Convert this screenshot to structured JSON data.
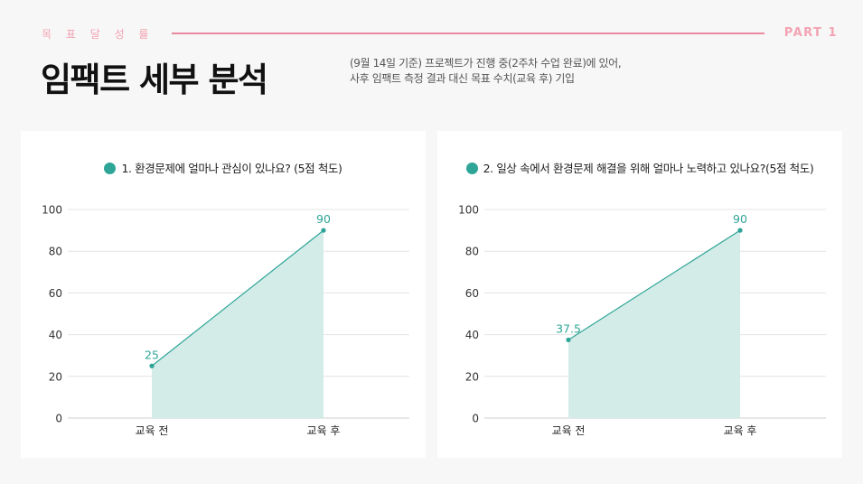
{
  "header": {
    "kicker": "목 표 달 성 률",
    "part": "PART 1",
    "title": "임팩트 세부 분석",
    "subtitle_line1": "(9월 14일 기준) 프로젝트가 진행 중(2주차 수업 완료)에 있어,",
    "subtitle_line2": "사후 임팩트 측정 결과 대신 목표 수치(교육 후) 기입"
  },
  "colors": {
    "accent": "#2ea597",
    "fill": "#d3ece8",
    "pink": "#e98aa0"
  },
  "chart_data": [
    {
      "type": "area",
      "title": "1. 환경문제에 얼마나 관심이 있나요? (5점 척도)",
      "categories": [
        "교육 전",
        "교육 후"
      ],
      "series": [
        {
          "values": [
            25,
            90
          ]
        }
      ],
      "data_labels": [
        "25",
        "90"
      ],
      "ylim": [
        0,
        100
      ],
      "yticks": [
        0,
        20,
        40,
        60,
        80,
        100
      ],
      "grid": true
    },
    {
      "type": "area",
      "title": "2. 일상 속에서 환경문제 해결을 위해 얼마나 노력하고 있나요?(5점 척도)",
      "categories": [
        "교육 전",
        "교육 후"
      ],
      "series": [
        {
          "values": [
            37.5,
            90
          ]
        }
      ],
      "data_labels": [
        "37.5",
        "90"
      ],
      "ylim": [
        0,
        100
      ],
      "yticks": [
        0,
        20,
        40,
        60,
        80,
        100
      ],
      "grid": true
    }
  ]
}
